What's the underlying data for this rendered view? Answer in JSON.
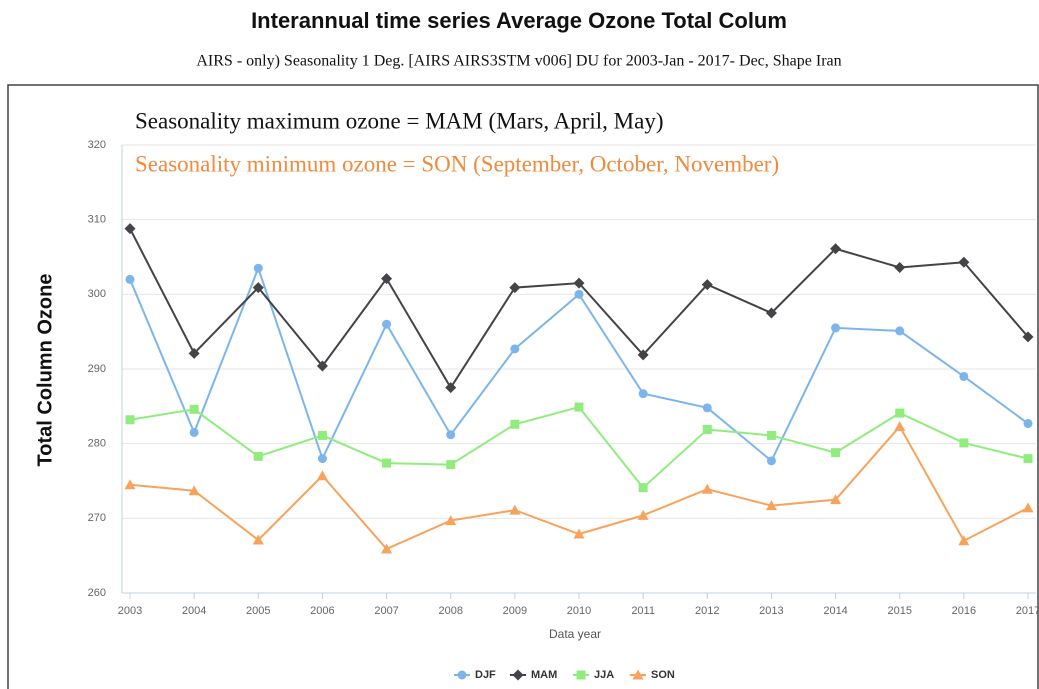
{
  "chart_data": {
    "type": "line",
    "title": "Interannual time series Average Ozone Total Colum",
    "subtitle": "AIRS - only) Seasonality 1 Deg. [AIRS AIRS3STM v006] DU for 2003-Jan - 2017- Dec, Shape Iran",
    "annotations": [
      {
        "text": "Seasonality maximum ozone = MAM (Mars, April, May)",
        "color": "#111111"
      },
      {
        "text": "Seasonality minimum ozone = SON (September, October, November)",
        "color": "#f08a3c"
      }
    ],
    "x_label": "Data year",
    "y_label": "Total Column Ozone",
    "x": [
      2003,
      2004,
      2005,
      2006,
      2007,
      2008,
      2009,
      2010,
      2011,
      2012,
      2013,
      2014,
      2015,
      2016,
      2017
    ],
    "xlim": [
      2003,
      2017
    ],
    "xticks": [
      2003,
      2004,
      2005,
      2006,
      2007,
      2008,
      2009,
      2010,
      2011,
      2012,
      2013,
      2014,
      2015,
      2016,
      2017
    ],
    "ylim": [
      260,
      320
    ],
    "yticks": [
      260,
      270,
      280,
      290,
      300,
      310,
      320
    ],
    "grid": true,
    "legend": "bottom",
    "series": [
      {
        "name": "DJF",
        "color": "#7cb5ec",
        "marker": "circle",
        "values": [
          302,
          281.5,
          303.5,
          278,
          296,
          281.2,
          292.7,
          300,
          286.7,
          284.8,
          277.7,
          295.5,
          295.1,
          289,
          282.7
        ]
      },
      {
        "name": "MAM",
        "color": "#434348",
        "marker": "diamond",
        "values": [
          308.8,
          292.1,
          300.9,
          290.4,
          302.1,
          287.5,
          300.9,
          301.5,
          291.9,
          301.3,
          297.5,
          306.1,
          303.6,
          304.3,
          294.3
        ]
      },
      {
        "name": "JJA",
        "color": "#90ed7d",
        "marker": "square",
        "values": [
          283.2,
          284.6,
          278.3,
          281.1,
          277.4,
          277.2,
          282.6,
          284.9,
          274.1,
          281.9,
          281.1,
          278.8,
          284.1,
          280.1,
          278.0
        ]
      },
      {
        "name": "SON",
        "color": "#f7a35c",
        "marker": "triangle",
        "values": [
          274.5,
          273.7,
          267.1,
          275.7,
          265.9,
          269.7,
          271.1,
          267.9,
          270.4,
          273.9,
          271.7,
          272.5,
          282.3,
          267,
          271.4
        ]
      }
    ]
  }
}
